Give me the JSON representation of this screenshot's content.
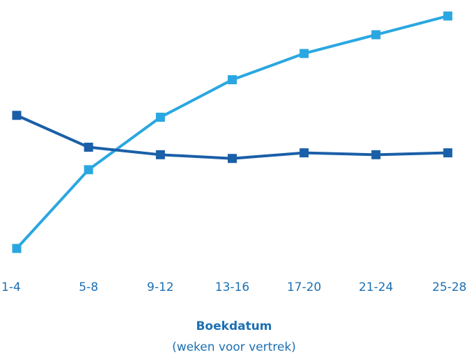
{
  "chart_data": {
    "type": "line",
    "categories": [
      "1-4",
      "5-8",
      "9-12",
      "13-16",
      "17-20",
      "21-24",
      "25-28"
    ],
    "series": [
      {
        "color": "#1a5fa8",
        "values": [
          71,
          54,
          50,
          48,
          51,
          50,
          51
        ]
      },
      {
        "color": "#2aa7e0",
        "values": [
          0,
          42,
          70,
          90,
          104,
          114,
          124
        ]
      }
    ],
    "ylim": [
      0,
      124
    ],
    "xlabel": "Boekdatum",
    "xlabel_sub": "(weken voor vertrek)",
    "ylabel": "",
    "title": "",
    "grid": false,
    "legend": "none"
  }
}
